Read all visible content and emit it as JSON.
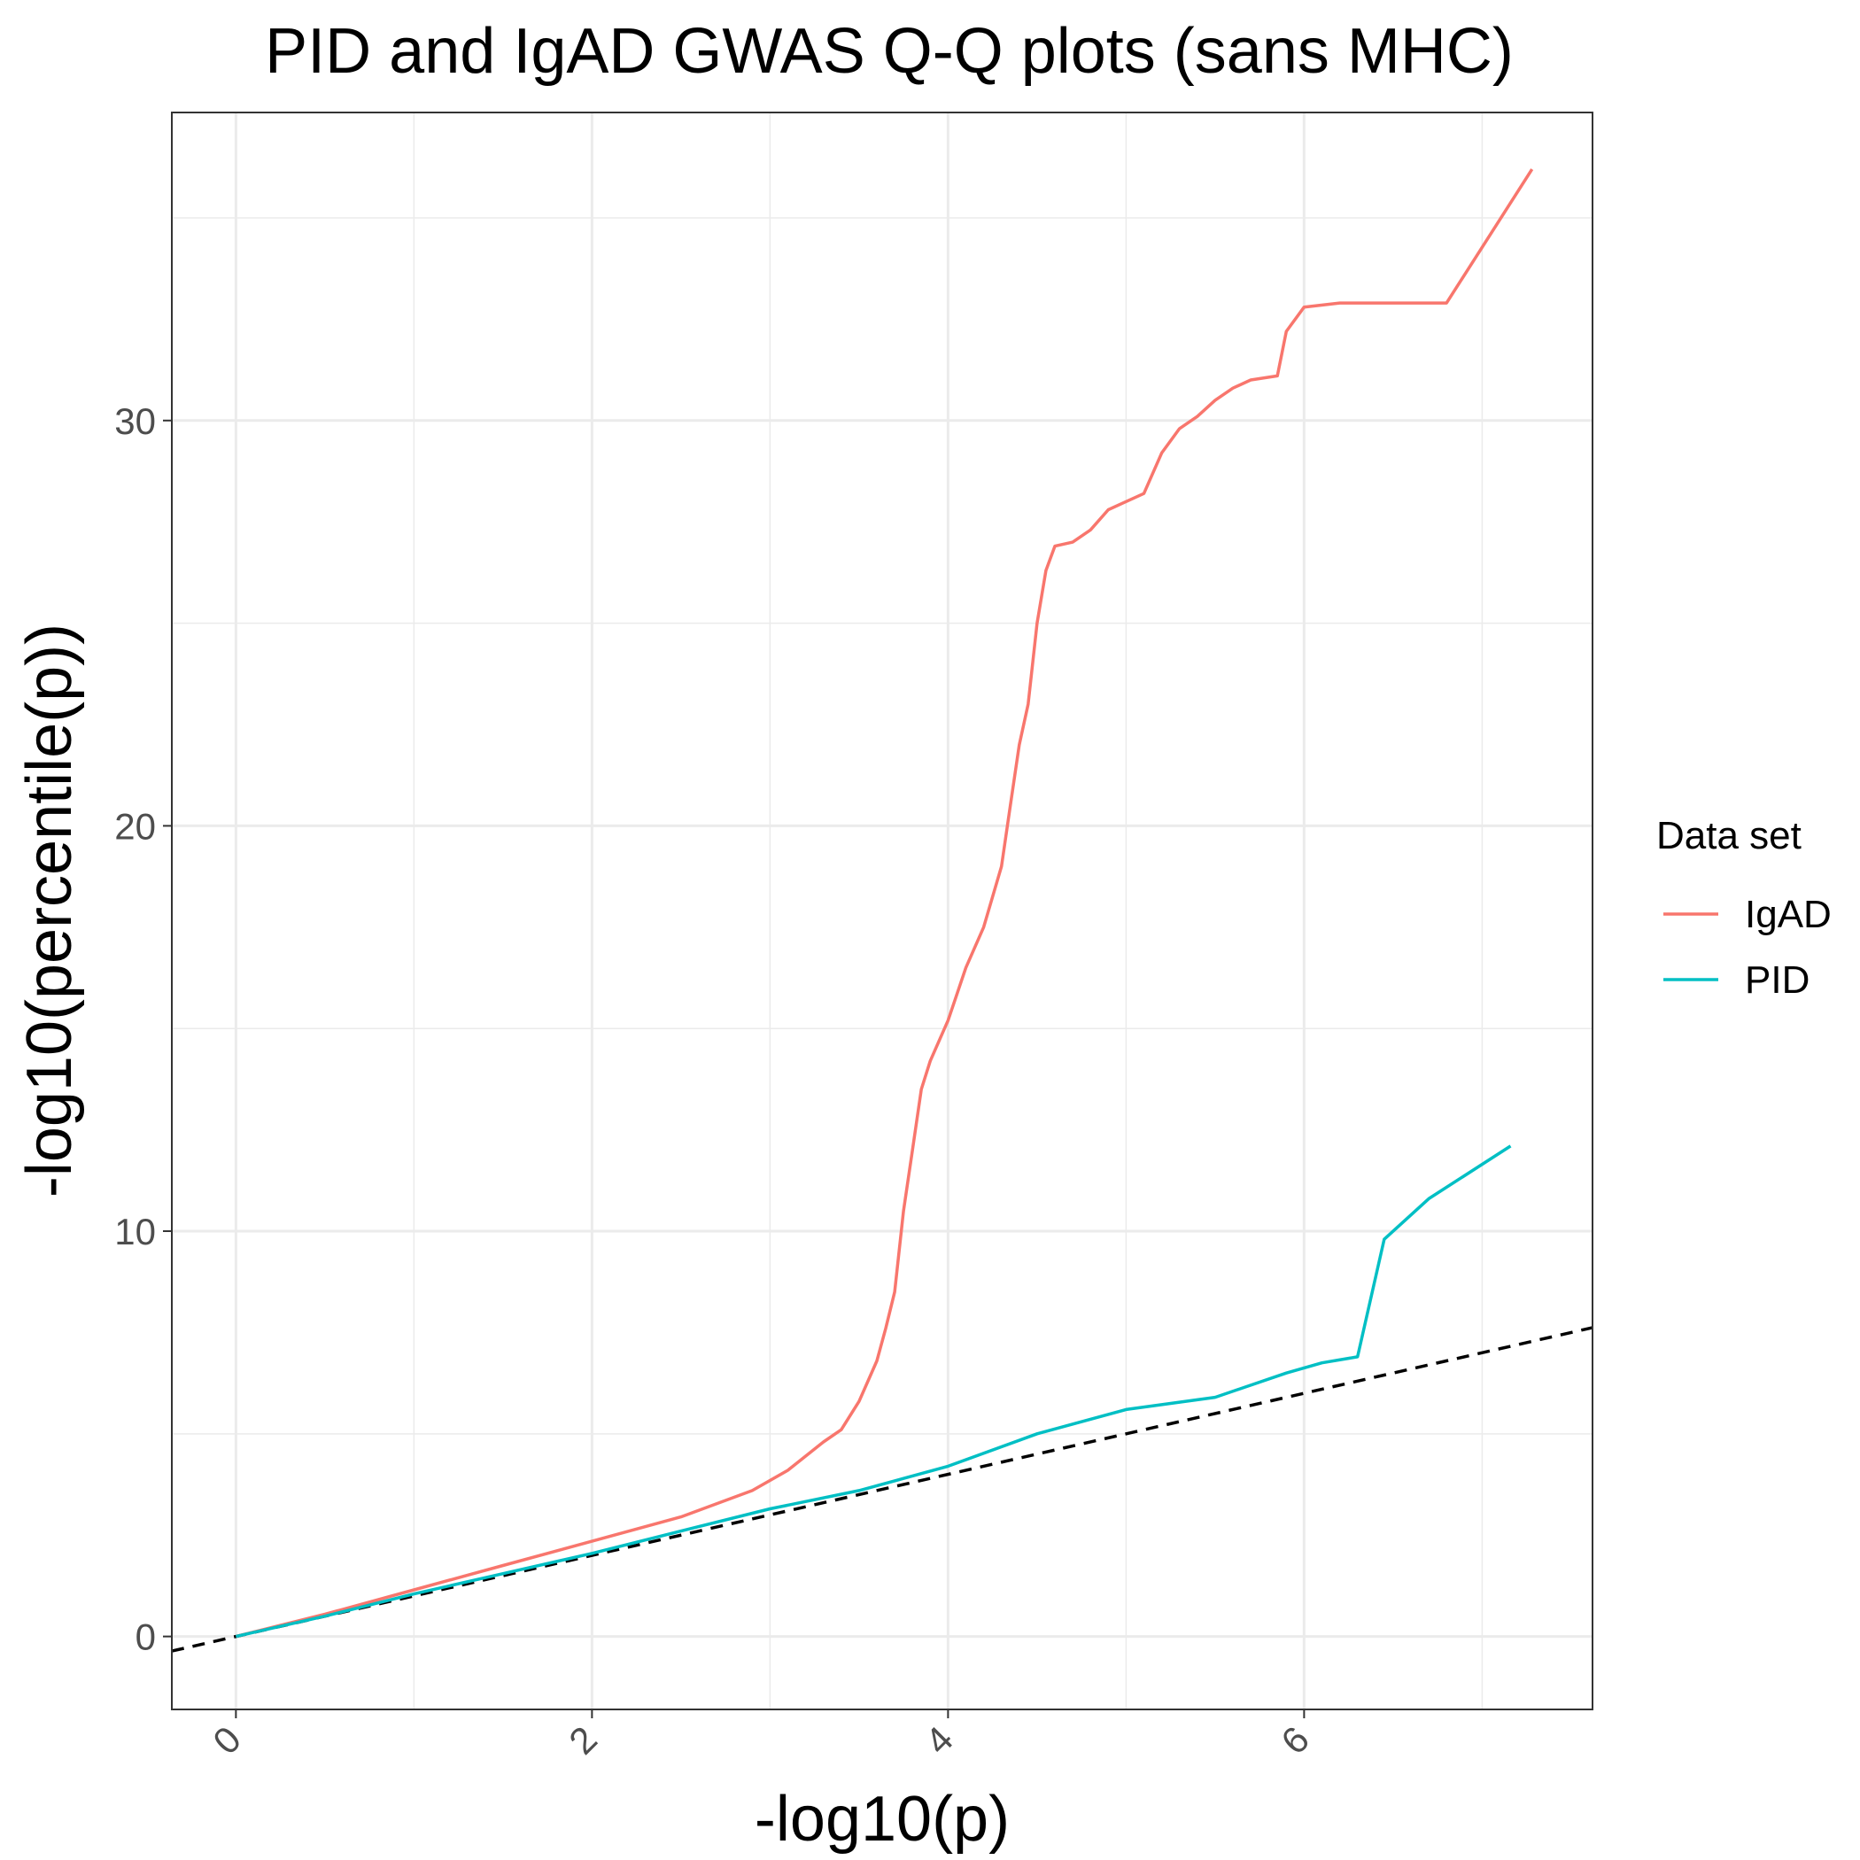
{
  "chart_data": {
    "type": "line",
    "title": "PID and IgAD GWAS Q-Q plots (sans MHC)",
    "xlabel": "-log10(p)",
    "ylabel": "-log10(percentile(p))",
    "xlim": [
      -0.36,
      7.62
    ],
    "ylim": [
      -1.8,
      37.6
    ],
    "x_ticks": [
      0,
      2,
      4,
      6
    ],
    "x_tick_labels": [
      "0",
      "2",
      "4",
      "6"
    ],
    "x_minor_ticks": [
      1,
      3,
      5,
      7
    ],
    "y_ticks": [
      0,
      10,
      20,
      30
    ],
    "y_tick_labels": [
      "0",
      "10",
      "20",
      "30"
    ],
    "y_minor_ticks": [
      5,
      15,
      25,
      35
    ],
    "grid": true,
    "legend": {
      "title": "Data set",
      "position": "right"
    },
    "reference_line": {
      "description": "y = x",
      "style": "dashed",
      "color": "#000000"
    },
    "series": [
      {
        "name": "IgAD",
        "color": "#F8766D",
        "points": [
          [
            0,
            0
          ],
          [
            0.5,
            0.55
          ],
          [
            1.0,
            1.15
          ],
          [
            1.5,
            1.75
          ],
          [
            2.0,
            2.35
          ],
          [
            2.5,
            2.95
          ],
          [
            2.9,
            3.6
          ],
          [
            3.1,
            4.1
          ],
          [
            3.3,
            4.8
          ],
          [
            3.4,
            5.1
          ],
          [
            3.5,
            5.8
          ],
          [
            3.6,
            6.8
          ],
          [
            3.65,
            7.6
          ],
          [
            3.7,
            8.5
          ],
          [
            3.75,
            10.5
          ],
          [
            3.8,
            12.0
          ],
          [
            3.85,
            13.5
          ],
          [
            3.9,
            14.2
          ],
          [
            4.0,
            15.2
          ],
          [
            4.1,
            16.5
          ],
          [
            4.2,
            17.5
          ],
          [
            4.3,
            19.0
          ],
          [
            4.35,
            20.5
          ],
          [
            4.4,
            22.0
          ],
          [
            4.45,
            23.0
          ],
          [
            4.5,
            25.0
          ],
          [
            4.55,
            26.3
          ],
          [
            4.6,
            26.9
          ],
          [
            4.7,
            27.0
          ],
          [
            4.8,
            27.3
          ],
          [
            4.9,
            27.8
          ],
          [
            5.0,
            28.0
          ],
          [
            5.1,
            28.2
          ],
          [
            5.2,
            29.2
          ],
          [
            5.3,
            29.8
          ],
          [
            5.4,
            30.1
          ],
          [
            5.5,
            30.5
          ],
          [
            5.6,
            30.8
          ],
          [
            5.7,
            31.0
          ],
          [
            5.85,
            31.1
          ],
          [
            5.9,
            32.2
          ],
          [
            6.0,
            32.8
          ],
          [
            6.2,
            32.9
          ],
          [
            6.5,
            32.9
          ],
          [
            6.8,
            32.9
          ],
          [
            7.28,
            36.2
          ]
        ]
      },
      {
        "name": "PID",
        "color": "#00BFC4",
        "points": [
          [
            0,
            0
          ],
          [
            0.5,
            0.5
          ],
          [
            1.0,
            1.05
          ],
          [
            1.5,
            1.55
          ],
          [
            2.0,
            2.05
          ],
          [
            2.5,
            2.6
          ],
          [
            3.0,
            3.15
          ],
          [
            3.5,
            3.6
          ],
          [
            4.0,
            4.2
          ],
          [
            4.5,
            5.0
          ],
          [
            5.0,
            5.6
          ],
          [
            5.5,
            5.9
          ],
          [
            5.9,
            6.5
          ],
          [
            6.1,
            6.75
          ],
          [
            6.3,
            6.9
          ],
          [
            6.45,
            9.8
          ],
          [
            6.7,
            10.8
          ],
          [
            7.16,
            12.1
          ]
        ]
      }
    ]
  }
}
